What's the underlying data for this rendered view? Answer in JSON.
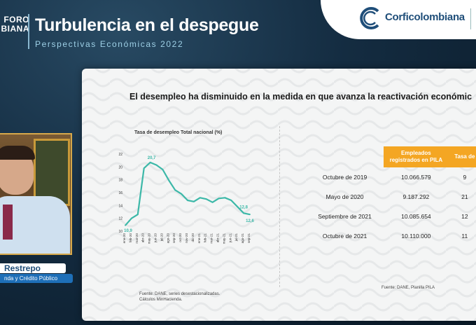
{
  "header": {
    "forum_brand_line1": "FORO",
    "forum_brand_line2": "BIANA",
    "event_title": "Turbulencia en el despegue",
    "event_subtitle": "Perspectivas Económicas 2022",
    "company_name": "Corficolombiana",
    "accent_color": "#1f4e79"
  },
  "slide": {
    "title": "El desempleo ha disminuido en la medida en que avanza la reactivación económic",
    "chart_source_line1": "Fuente: DANE, series desestacionalizadas.",
    "chart_source_line2": "Cálculos MinHacienda.",
    "table_source": "Fuente: DANE, Planilla PILA",
    "table": {
      "header_color": "#f4a623",
      "columns": [
        "",
        "Empleados registrados en PILA",
        "Tasa de"
      ],
      "rows": [
        [
          "Octubre de 2019",
          "10.066.579",
          "9"
        ],
        [
          "Mayo de 2020",
          "9.187.292",
          "21"
        ],
        [
          "Septiembre de 2021",
          "10.085.654",
          "12"
        ],
        [
          "Octubre de 2021",
          "10.110.000",
          "11"
        ]
      ]
    }
  },
  "chart_data": {
    "type": "line",
    "title": "Tasa de desempleo Total nacional (%)",
    "xlabel": "",
    "ylabel": "",
    "ylim": [
      10,
      22
    ],
    "yticks": [
      "10",
      "12",
      "14",
      "16",
      "18",
      "20",
      "22"
    ],
    "line_color": "#3cb8a8",
    "categories": [
      "ene-20",
      "feb-20",
      "mar-20",
      "abr-20",
      "may-20",
      "jun-20",
      "jul-20",
      "ago-20",
      "sep-20",
      "oct-20",
      "nov-20",
      "dic-20",
      "ene-21",
      "feb-21",
      "mar-21",
      "abr-21",
      "may-21",
      "jun-21",
      "jul-21",
      "ago-21",
      "sep-21"
    ],
    "series": [
      {
        "values": [
          10.9,
          12.0,
          12.6,
          19.8,
          20.7,
          20.3,
          19.6,
          17.9,
          16.4,
          15.8,
          14.8,
          14.6,
          15.2,
          15.0,
          14.5,
          15.1,
          15.2,
          14.8,
          13.8,
          12.8,
          12.6
        ]
      }
    ],
    "annotations": [
      {
        "category": "ene-20",
        "label": "10,9"
      },
      {
        "category": "may-20",
        "label": "20,7"
      },
      {
        "category": "ago-21",
        "label": "12,8"
      },
      {
        "category": "sep-21",
        "label": "12,6"
      }
    ]
  },
  "speaker": {
    "name": "Restrepo",
    "role": "nda y Crédito Público",
    "bar_color": "#1e6fb8"
  }
}
